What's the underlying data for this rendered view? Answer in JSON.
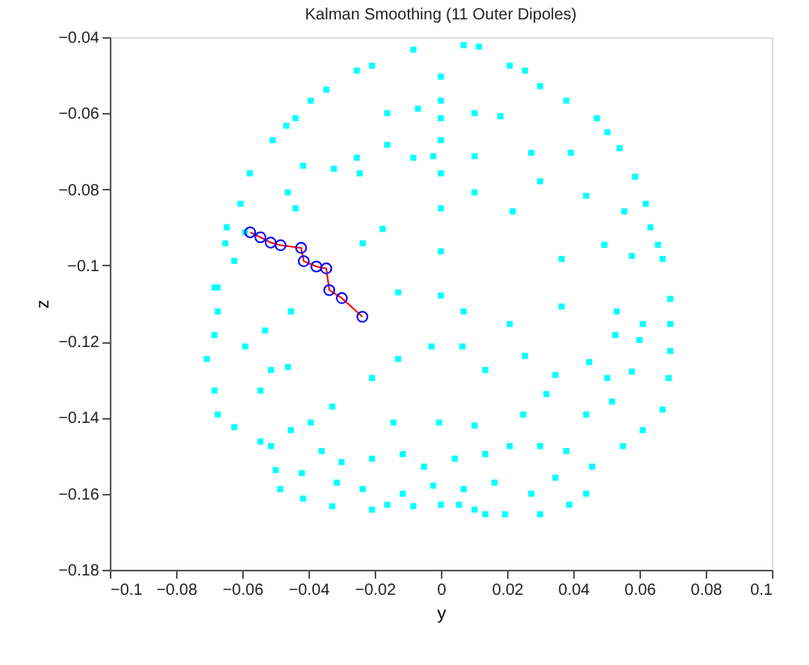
{
  "chart_data": {
    "type": "scatter",
    "title": "Kalman Smoothing (11 Outer Dipoles)",
    "xlabel": "y",
    "ylabel": "z",
    "xlim": [
      -0.1,
      0.1
    ],
    "xticks": [
      -0.1,
      -0.08,
      -0.06,
      -0.04,
      -0.02,
      0,
      0.02,
      0.04,
      0.06,
      0.08,
      0.1
    ],
    "ylim": [
      -0.18,
      -0.04
    ],
    "yticks": [
      -0.18,
      -0.16,
      -0.14,
      -0.12,
      -0.1,
      -0.08,
      -0.06,
      -0.04
    ],
    "grid": false,
    "series": [
      {
        "marker": "square",
        "color": "#00ffff",
        "x": [
          -0.0083,
          0.0069,
          0.0115,
          -0.0254,
          -0.0208,
          0.0208,
          0.0254,
          -0.0393,
          -0.0346,
          0.03,
          0.0379,
          -0.0467,
          -0.0439,
          0.0471,
          0.0503,
          -0.0508,
          0.054,
          -0.0577,
          0.0587,
          -0.0605,
          0.0619,
          -0.0647,
          0.0633,
          -0.0651,
          0.0656,
          -0.0674,
          0.067,
          0.0693,
          0,
          0,
          0,
          0,
          0,
          0,
          0,
          -0.0162,
          -0.0069,
          0.0102,
          0.018,
          -0.0162,
          -0.0023,
          0.0102,
          0.0273,
          -0.0083,
          -0.0254,
          -0.0416,
          -0.0323,
          -0.0245,
          -0.0462,
          0.0102,
          0.03,
          0.0393,
          0.0439,
          0.0217,
          0.0554,
          -0.0439,
          -0.0176,
          -0.0236,
          0.0365,
          0.0494,
          0.0577,
          -0.0591,
          -0.0624,
          -0.0129,
          0,
          -0.0684,
          -0.0674,
          -0.0684,
          -0.0707,
          -0.0684,
          -0.0674,
          -0.0624,
          -0.0545,
          -0.0499,
          -0.0485,
          -0.0416,
          -0.0328,
          -0.0208,
          -0.0083,
          0,
          0.0102,
          0.0194,
          0.03,
          0.0388,
          0.0439,
          0.0457,
          0.055,
          0.061,
          0.067,
          0.0688,
          0.0693,
          0.0693,
          0.0069,
          -0.0028,
          0.0065,
          -0.0129,
          -0.0208,
          -0.0328,
          -0.0393,
          -0.0143,
          -0.0005,
          0.0102,
          0.0249,
          0.0319,
          0.0439,
          0.0517,
          0.0503,
          0.0577,
          0.06,
          0.0527,
          0.0448,
          0.0346,
          0.0254,
          0.0134,
          0.0208,
          0.0365,
          0.0531,
          0.061,
          -0.0453,
          -0.0531,
          -0.0591,
          -0.0513,
          -0.0545,
          -0.0462,
          -0.0453,
          -0.0513,
          -0.036,
          -0.03,
          -0.0208,
          -0.0115,
          -0.0051,
          0.0042,
          0.0134,
          0.0208,
          0.03,
          0.0379,
          0.0346,
          0.0273,
          0.0162,
          0.0069,
          -0.0023,
          -0.0115,
          -0.0236,
          -0.0314,
          -0.042,
          -0.0162,
          0.0055,
          0.0134
        ],
        "values": [
          -0.0433,
          -0.0421,
          -0.0425,
          -0.0488,
          -0.0475,
          -0.0475,
          -0.0488,
          -0.0567,
          -0.0538,
          -0.0529,
          -0.0567,
          -0.0633,
          -0.0613,
          -0.0613,
          -0.065,
          -0.0671,
          -0.0692,
          -0.0758,
          -0.0767,
          -0.0838,
          -0.0838,
          -0.09,
          -0.09,
          -0.0942,
          -0.0946,
          -0.1058,
          -0.0983,
          -0.1088,
          -0.0504,
          -0.0567,
          -0.0613,
          -0.0671,
          -0.0758,
          -0.085,
          -0.0963,
          -0.06,
          -0.0588,
          -0.06,
          -0.0608,
          -0.0683,
          -0.0713,
          -0.0713,
          -0.0704,
          -0.0717,
          -0.0717,
          -0.0738,
          -0.0746,
          -0.0758,
          -0.0808,
          -0.0808,
          -0.0779,
          -0.0704,
          -0.0817,
          -0.0858,
          -0.0858,
          -0.085,
          -0.0904,
          -0.0942,
          -0.0983,
          -0.0946,
          -0.0975,
          -0.0913,
          -0.0988,
          -0.1071,
          -0.1079,
          -0.1058,
          -0.1121,
          -0.1183,
          -0.1246,
          -0.1329,
          -0.1392,
          -0.1425,
          -0.1463,
          -0.1538,
          -0.1588,
          -0.1613,
          -0.1633,
          -0.1642,
          -0.1633,
          -0.1629,
          -0.1642,
          -0.1654,
          -0.1654,
          -0.1629,
          -0.16,
          -0.1529,
          -0.1475,
          -0.1433,
          -0.1379,
          -0.1296,
          -0.1225,
          -0.1154,
          -0.1121,
          -0.1213,
          -0.1213,
          -0.1246,
          -0.1296,
          -0.1371,
          -0.1413,
          -0.1413,
          -0.1413,
          -0.1421,
          -0.1392,
          -0.1338,
          -0.1392,
          -0.1358,
          -0.1296,
          -0.1279,
          -0.1196,
          -0.1183,
          -0.1254,
          -0.1288,
          -0.1238,
          -0.1275,
          -0.1154,
          -0.1108,
          -0.1121,
          -0.1154,
          -0.1121,
          -0.1171,
          -0.1213,
          -0.1275,
          -0.1329,
          -0.1267,
          -0.1433,
          -0.1475,
          -0.1488,
          -0.1517,
          -0.1508,
          -0.1496,
          -0.1529,
          -0.1508,
          -0.1496,
          -0.1475,
          -0.1475,
          -0.1488,
          -0.1558,
          -0.16,
          -0.1571,
          -0.1588,
          -0.1579,
          -0.16,
          -0.1588,
          -0.1571,
          -0.1546,
          -0.1629,
          -0.1629,
          -0.1654
        ]
      },
      {
        "type": "line",
        "marker": "none",
        "color": "#ff0000",
        "x": [
          -0.0576,
          -0.0545,
          -0.0514,
          -0.0484,
          -0.0422,
          -0.0414,
          -0.0376,
          -0.0346,
          -0.0337,
          -0.0299,
          -0.0237
        ],
        "values": [
          -0.0913,
          -0.0926,
          -0.094,
          -0.0947,
          -0.0954,
          -0.0989,
          -0.1003,
          -0.1008,
          -0.1065,
          -0.1086,
          -0.1135
        ]
      },
      {
        "type": "scatter",
        "marker": "circle",
        "color": "#0000ff",
        "x": [
          -0.0576,
          -0.0545,
          -0.0514,
          -0.0484,
          -0.0422,
          -0.0414,
          -0.0376,
          -0.0346,
          -0.0337,
          -0.0299,
          -0.0237
        ],
        "values": [
          -0.0913,
          -0.0926,
          -0.094,
          -0.0947,
          -0.0954,
          -0.0989,
          -0.1003,
          -0.1008,
          -0.1065,
          -0.1086,
          -0.1135
        ]
      }
    ]
  }
}
